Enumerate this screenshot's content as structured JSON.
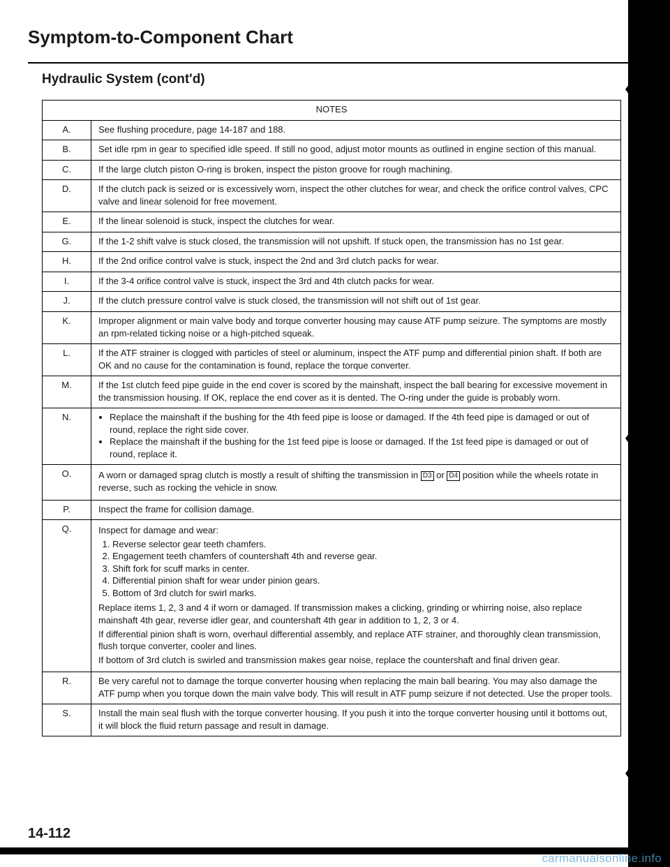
{
  "page": {
    "title": "Symptom-to-Component Chart",
    "subtitle": "Hydraulic System (cont'd)",
    "page_number": "14-112",
    "watermark": "carmanualsonline.info",
    "notes_header": "NOTES",
    "symbols": {
      "d3": "D3",
      "d4": "D4"
    },
    "rows": [
      {
        "letter": "A.",
        "text": "See flushing procedure, page 14-187 and 188."
      },
      {
        "letter": "B.",
        "text": "Set idle rpm in gear to specified idle speed. If still no good, adjust motor mounts as outlined in engine section of this manual."
      },
      {
        "letter": "C.",
        "text": "If the large clutch piston O-ring is broken, inspect the piston groove for rough machining."
      },
      {
        "letter": "D.",
        "text": "If the clutch pack is seized or is excessively worn, inspect the other clutches for wear, and check the orifice control valves, CPC valve and linear solenoid for free movement."
      },
      {
        "letter": "E.",
        "text": "If the linear solenoid is stuck, inspect the clutches for wear."
      },
      {
        "letter": "G.",
        "text": "If the 1-2 shift valve is stuck closed, the transmission will not upshift. If stuck open, the transmission has no 1st gear."
      },
      {
        "letter": "H.",
        "text": "If the 2nd orifice control valve is stuck, inspect the 2nd and 3rd clutch packs for wear."
      },
      {
        "letter": "I.",
        "text": "If the 3-4 orifice control valve is stuck, inspect the 3rd and 4th clutch packs for wear."
      },
      {
        "letter": "J.",
        "text": "If the clutch pressure control valve is stuck closed, the transmission will not shift out of 1st gear."
      },
      {
        "letter": "K.",
        "text": "Improper alignment or main valve body and torque converter housing may cause ATF pump seizure. The symptoms are mostly an rpm-related ticking noise or a high-pitched squeak."
      },
      {
        "letter": "L.",
        "text": "If the ATF strainer is clogged with particles of steel or aluminum, inspect the ATF pump and differential pinion shaft. If both are OK and no cause for the contamination is found, replace the torque converter."
      },
      {
        "letter": "M.",
        "text": "If the 1st clutch feed pipe guide in the end cover is scored by the mainshaft, inspect the ball bearing for excessive movement in the transmission housing. If OK, replace the end cover as it is dented. The O-ring under the guide is probably worn."
      },
      {
        "letter": "N.",
        "bullets": [
          "Replace the mainshaft if the bushing for the 4th feed pipe is loose or damaged. If the 4th feed pipe is damaged or out of round, replace the right side cover.",
          "Replace the mainshaft if the bushing for the 1st feed pipe is loose or damaged. If the 1st feed pipe is damaged or out of round, replace it."
        ]
      },
      {
        "letter": "O.",
        "text_pre": "A worn or damaged sprag clutch is mostly a result of shifting the transmission in ",
        "text_mid": " or ",
        "text_post": " position while the wheels rotate in reverse, such as rocking the vehicle in snow."
      },
      {
        "letter": "P.",
        "text": "Inspect the frame for collision damage."
      },
      {
        "letter": "Q.",
        "intro": "Inspect for damage and wear:",
        "numbered": [
          "Reverse selector gear teeth chamfers.",
          "Engagement teeth chamfers of countershaft 4th and reverse gear.",
          "Shift fork for scuff marks in center.",
          "Differential pinion shaft for wear under pinion gears.",
          "Bottom of 3rd clutch for swirl marks."
        ],
        "post": [
          "Replace items 1, 2, 3 and 4 if worn or damaged. If transmission makes a clicking, grinding or whirring noise, also replace mainshaft 4th gear, reverse idler gear, and countershaft 4th gear in addition to 1, 2, 3 or 4.",
          "If differential pinion shaft is worn, overhaul differential assembly, and replace ATF strainer, and thoroughly clean transmission, flush torque converter, cooler and lines.",
          "If bottom of 3rd clutch is swirled and transmission makes gear noise, replace the countershaft and final driven gear."
        ]
      },
      {
        "letter": "R.",
        "text": "Be very careful not to damage the torque converter housing when replacing the main ball bearing. You may also damage the ATF pump when you torque down the main valve body. This will result in ATF pump seizure if not detected. Use the proper tools."
      },
      {
        "letter": "S.",
        "text": "Install the main seal flush with the torque converter housing. If you push it into the torque converter housing until it bottoms out, it will block the fluid return passage and result in damage."
      }
    ]
  }
}
